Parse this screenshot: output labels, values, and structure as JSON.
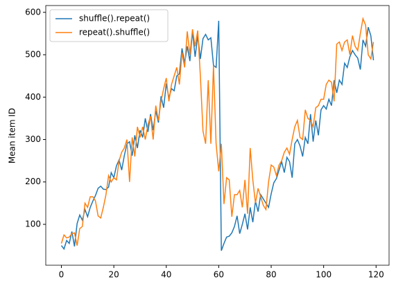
{
  "chart_data": {
    "type": "line",
    "ylabel": "Mean item ID",
    "x": [
      0,
      1,
      2,
      3,
      4,
      5,
      6,
      7,
      8,
      9,
      10,
      11,
      12,
      13,
      14,
      15,
      16,
      17,
      18,
      19,
      20,
      21,
      22,
      23,
      24,
      25,
      26,
      27,
      28,
      29,
      30,
      31,
      32,
      33,
      34,
      35,
      36,
      37,
      38,
      39,
      40,
      41,
      42,
      43,
      44,
      45,
      46,
      47,
      48,
      49,
      50,
      51,
      52,
      53,
      54,
      55,
      56,
      57,
      58,
      59,
      60,
      61,
      62,
      63,
      64,
      65,
      66,
      67,
      68,
      69,
      70,
      71,
      72,
      73,
      74,
      75,
      76,
      77,
      78,
      79,
      80,
      81,
      82,
      83,
      84,
      85,
      86,
      87,
      88,
      89,
      90,
      91,
      92,
      93,
      94,
      95,
      96,
      97,
      98,
      99,
      100,
      101,
      102,
      103,
      104,
      105,
      106,
      107,
      108,
      109,
      110,
      111,
      112,
      113,
      114,
      115,
      116,
      117,
      118,
      119
    ],
    "series": [
      {
        "name": "shuffle().repeat()",
        "color": "#1f77b4",
        "values": [
          50,
          42,
          62,
          55,
          83,
          48,
          102,
          122,
          110,
          135,
          118,
          140,
          155,
          168,
          185,
          190,
          183,
          182,
          188,
          222,
          210,
          238,
          252,
          228,
          262,
          290,
          295,
          262,
          310,
          280,
          322,
          305,
          350,
          318,
          360,
          322,
          368,
          340,
          402,
          375,
          432,
          398,
          420,
          415,
          450,
          455,
          515,
          480,
          520,
          485,
          555,
          495,
          545,
          490,
          538,
          548,
          535,
          540,
          475,
          470,
          580,
          38,
          55,
          70,
          72,
          80,
          95,
          120,
          78,
          100,
          125,
          88,
          140,
          105,
          155,
          130,
          170,
          160,
          150,
          140,
          172,
          198,
          208,
          228,
          248,
          222,
          258,
          248,
          210,
          290,
          300,
          285,
          260,
          305,
          290,
          360,
          295,
          345,
          310,
          370,
          380,
          372,
          395,
          380,
          440,
          410,
          440,
          430,
          480,
          470,
          495,
          510,
          500,
          492,
          465,
          535,
          520,
          565,
          545,
          487
        ]
      },
      {
        "name": "repeat().shuffle()",
        "color": "#ff7f0e",
        "values": [
          55,
          75,
          68,
          70,
          78,
          80,
          50,
          90,
          95,
          150,
          140,
          165,
          165,
          155,
          120,
          115,
          140,
          170,
          215,
          200,
          210,
          205,
          250,
          270,
          280,
          300,
          200,
          305,
          260,
          330,
          305,
          330,
          300,
          335,
          355,
          300,
          380,
          345,
          390,
          420,
          445,
          390,
          430,
          450,
          470,
          430,
          505,
          470,
          555,
          500,
          560,
          520,
          557,
          450,
          320,
          290,
          440,
          290,
          475,
          290,
          225,
          290,
          148,
          210,
          205,
          118,
          170,
          170,
          180,
          140,
          205,
          125,
          280,
          205,
          150,
          185,
          165,
          145,
          135,
          200,
          240,
          235,
          215,
          240,
          250,
          270,
          280,
          265,
          300,
          330,
          345,
          305,
          300,
          370,
          350,
          345,
          330,
          375,
          380,
          395,
          395,
          430,
          440,
          435,
          390,
          525,
          530,
          510,
          530,
          535,
          500,
          545,
          520,
          510,
          550,
          585,
          570,
          500,
          490,
          530
        ]
      }
    ],
    "xlim": [
      -5.95,
      124.95
    ],
    "xticks": [
      0,
      20,
      40,
      60,
      80,
      100,
      120
    ],
    "ylim": [
      3.6,
      616
    ],
    "yticks": [
      100,
      200,
      300,
      400,
      500,
      600
    ],
    "legend": "upper left"
  }
}
